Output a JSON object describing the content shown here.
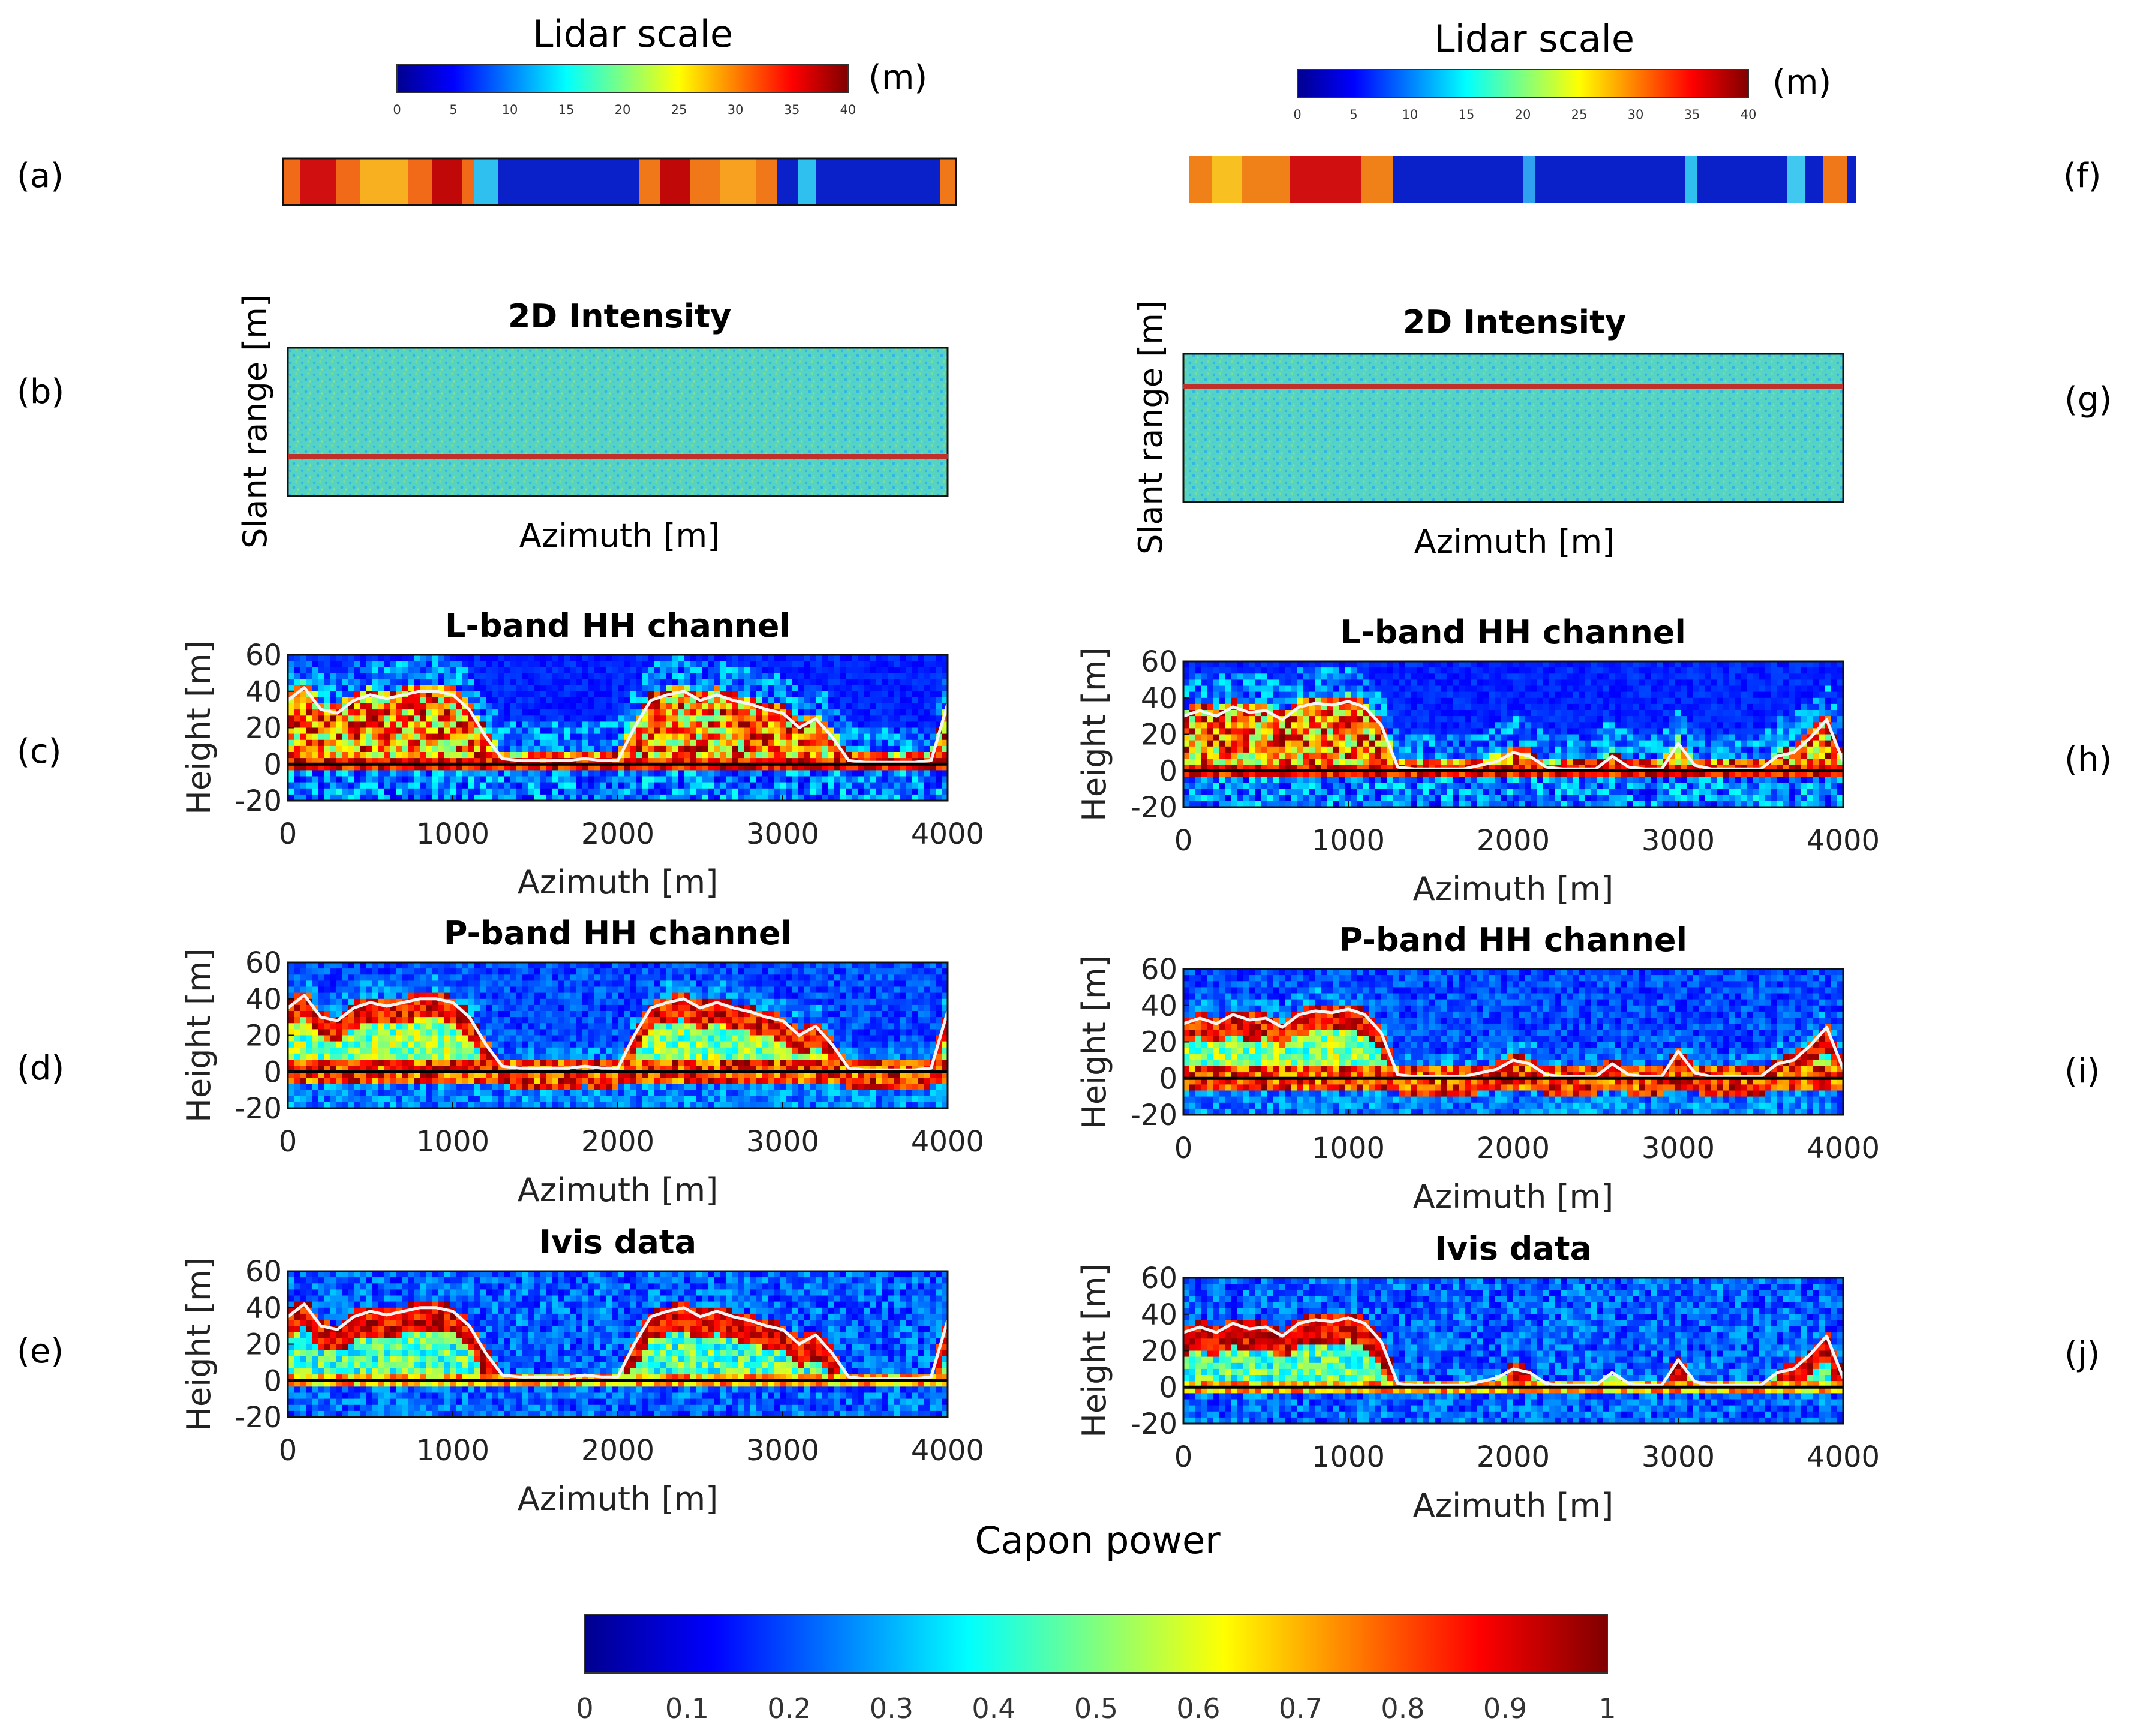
{
  "figure": {
    "lidar_scale": {
      "title": "Lidar scale",
      "unit": "(m)",
      "ticks": [
        "0",
        "5",
        "10",
        "15",
        "20",
        "25",
        "30",
        "35",
        "40"
      ],
      "range": [
        0,
        40
      ]
    },
    "capon_scale": {
      "title": "Capon power",
      "ticks": [
        "0",
        "0.1",
        "0.2",
        "0.3",
        "0.4",
        "0.5",
        "0.6",
        "0.7",
        "0.8",
        "0.9",
        "1"
      ],
      "range": [
        0,
        1
      ]
    },
    "panel_labels": {
      "a": "(a)",
      "b": "(b)",
      "c": "(c)",
      "d": "(d)",
      "e": "(e)",
      "f": "(f)",
      "g": "(g)",
      "h": "(h)",
      "i": "(i)",
      "j": "(j)"
    },
    "intensity": {
      "title": "2D Intensity",
      "xlabel": "Azimuth [m]",
      "ylabel": "Slant range [m]"
    },
    "tomo": {
      "xlabel": "Azimuth [m]",
      "ylabel": "Height [m]",
      "x_ticks": [
        "0",
        "1000",
        "2000",
        "3000",
        "4000"
      ],
      "y_ticks": [
        "60",
        "40",
        "20",
        "0",
        "-20"
      ],
      "titles": {
        "lband": "L-band HH channel",
        "pband": "P-band HH channel",
        "ivis": "Ivis data"
      }
    }
  },
  "chart_data": [
    {
      "id": "left-column",
      "type": "heatmap",
      "azimuth_range": [
        0,
        4000
      ],
      "height_range": [
        -20,
        60
      ],
      "lidar_profile": {
        "azimuth": [
          0,
          100,
          200,
          300,
          400,
          500,
          600,
          700,
          800,
          900,
          1000,
          1100,
          1200,
          1300,
          1400,
          1500,
          1600,
          1700,
          1800,
          1900,
          2000,
          2100,
          2200,
          2300,
          2400,
          2500,
          2600,
          2700,
          2800,
          2900,
          3000,
          3100,
          3200,
          3300,
          3400,
          3500,
          3600,
          3700,
          3800,
          3900,
          4000
        ],
        "height": [
          35,
          42,
          30,
          28,
          35,
          38,
          36,
          38,
          40,
          40,
          38,
          30,
          15,
          3,
          2,
          2,
          2,
          2,
          3,
          2,
          2,
          20,
          35,
          38,
          40,
          35,
          38,
          35,
          33,
          30,
          28,
          20,
          25,
          15,
          2,
          1,
          1,
          1,
          1,
          2,
          33
        ]
      },
      "intensity_profile_line_fraction": 0.75
    },
    {
      "id": "right-column",
      "type": "heatmap",
      "azimuth_range": [
        0,
        4000
      ],
      "height_range": [
        -20,
        60
      ],
      "lidar_profile": {
        "azimuth": [
          0,
          100,
          200,
          300,
          400,
          500,
          600,
          700,
          800,
          900,
          1000,
          1100,
          1200,
          1300,
          1400,
          1500,
          1600,
          1700,
          1800,
          1900,
          2000,
          2100,
          2200,
          2300,
          2400,
          2500,
          2600,
          2700,
          2800,
          2900,
          3000,
          3100,
          3200,
          3300,
          3400,
          3500,
          3600,
          3700,
          3800,
          3900,
          4000
        ],
        "height": [
          30,
          33,
          30,
          35,
          32,
          33,
          28,
          35,
          37,
          36,
          38,
          35,
          25,
          2,
          1,
          1,
          1,
          1,
          3,
          5,
          10,
          8,
          2,
          1,
          1,
          1,
          8,
          2,
          1,
          1,
          15,
          3,
          1,
          1,
          1,
          1,
          8,
          10,
          18,
          28,
          5
        ]
      },
      "intensity_profile_line_fraction": 0.22
    }
  ]
}
